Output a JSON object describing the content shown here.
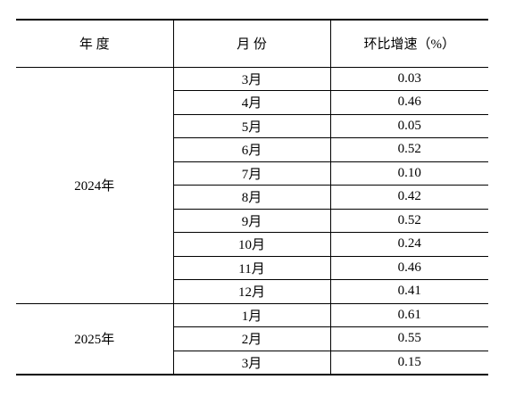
{
  "table": {
    "headers": {
      "year": "年 度",
      "month": "月 份",
      "rate": "环比增速（%）"
    },
    "groups": [
      {
        "year": "2024年",
        "rows": [
          {
            "month": "3月",
            "rate": "0.03"
          },
          {
            "month": "4月",
            "rate": "0.46"
          },
          {
            "month": "5月",
            "rate": "0.05"
          },
          {
            "month": "6月",
            "rate": "0.52"
          },
          {
            "month": "7月",
            "rate": "0.10"
          },
          {
            "month": "8月",
            "rate": "0.42"
          },
          {
            "month": "9月",
            "rate": "0.52"
          },
          {
            "month": "10月",
            "rate": "0.24"
          },
          {
            "month": "11月",
            "rate": "0.46"
          },
          {
            "month": "12月",
            "rate": "0.41"
          }
        ]
      },
      {
        "year": "2025年",
        "rows": [
          {
            "month": "1月",
            "rate": "0.61"
          },
          {
            "month": "2月",
            "rate": "0.55"
          },
          {
            "month": "3月",
            "rate": "0.15"
          }
        ]
      }
    ]
  }
}
